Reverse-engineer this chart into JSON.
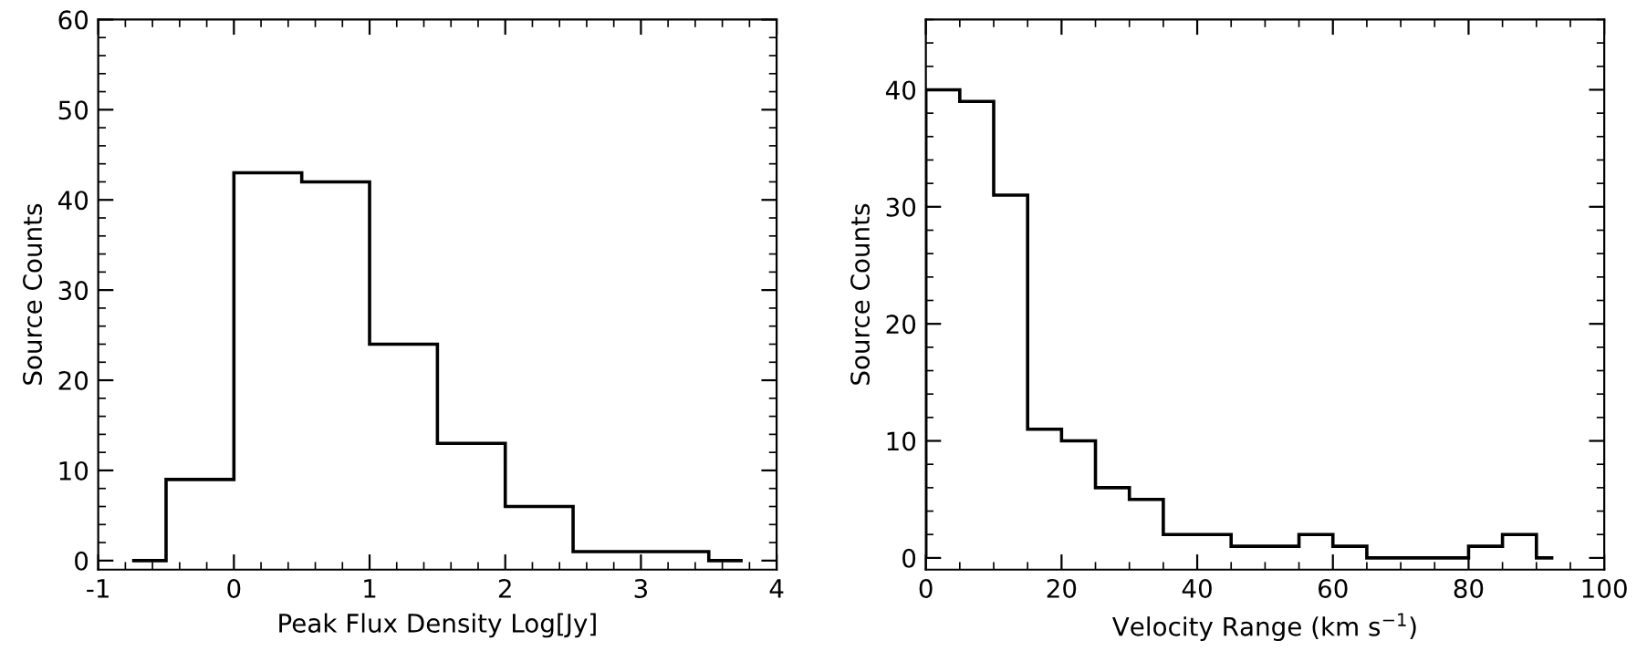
{
  "chart_data": [
    {
      "type": "histogram",
      "xlabel": "Peak Flux Density Log[Jy]",
      "ylabel": "Source Counts",
      "bins": [
        -0.75,
        -0.5,
        0,
        0.5,
        1,
        1.5,
        2,
        2.5,
        3,
        3.5,
        3.75
      ],
      "values": [
        0,
        9,
        43,
        42,
        24,
        13,
        6,
        1,
        1,
        0
      ],
      "color": "#000000",
      "xlim": [
        -1,
        4
      ],
      "ylim": [
        -1,
        60
      ],
      "xticks": [
        -1,
        0,
        1,
        2,
        3,
        4
      ],
      "yticks": [
        0,
        10,
        20,
        30,
        40,
        50,
        60
      ],
      "grid": false,
      "legend": false
    },
    {
      "type": "histogram",
      "xlabel": "Velocity Range (km s$^{−1}$)",
      "ylabel": "Source Counts",
      "bins": [
        0,
        5,
        10,
        15,
        20,
        25,
        30,
        35,
        40,
        45,
        50,
        55,
        60,
        65,
        70,
        75,
        80,
        85,
        90,
        92.5
      ],
      "values": [
        40,
        39,
        31,
        11,
        10,
        6,
        5,
        2,
        2,
        1,
        1,
        2,
        1,
        0,
        0,
        0,
        1,
        2,
        0
      ],
      "color": "#000000",
      "xlim": [
        0,
        100
      ],
      "ylim": [
        -1,
        46
      ],
      "xticks": [
        0,
        20,
        40,
        60,
        80,
        100
      ],
      "yticks": [
        0,
        10,
        20,
        30,
        40
      ],
      "grid": false,
      "legend": false
    }
  ]
}
